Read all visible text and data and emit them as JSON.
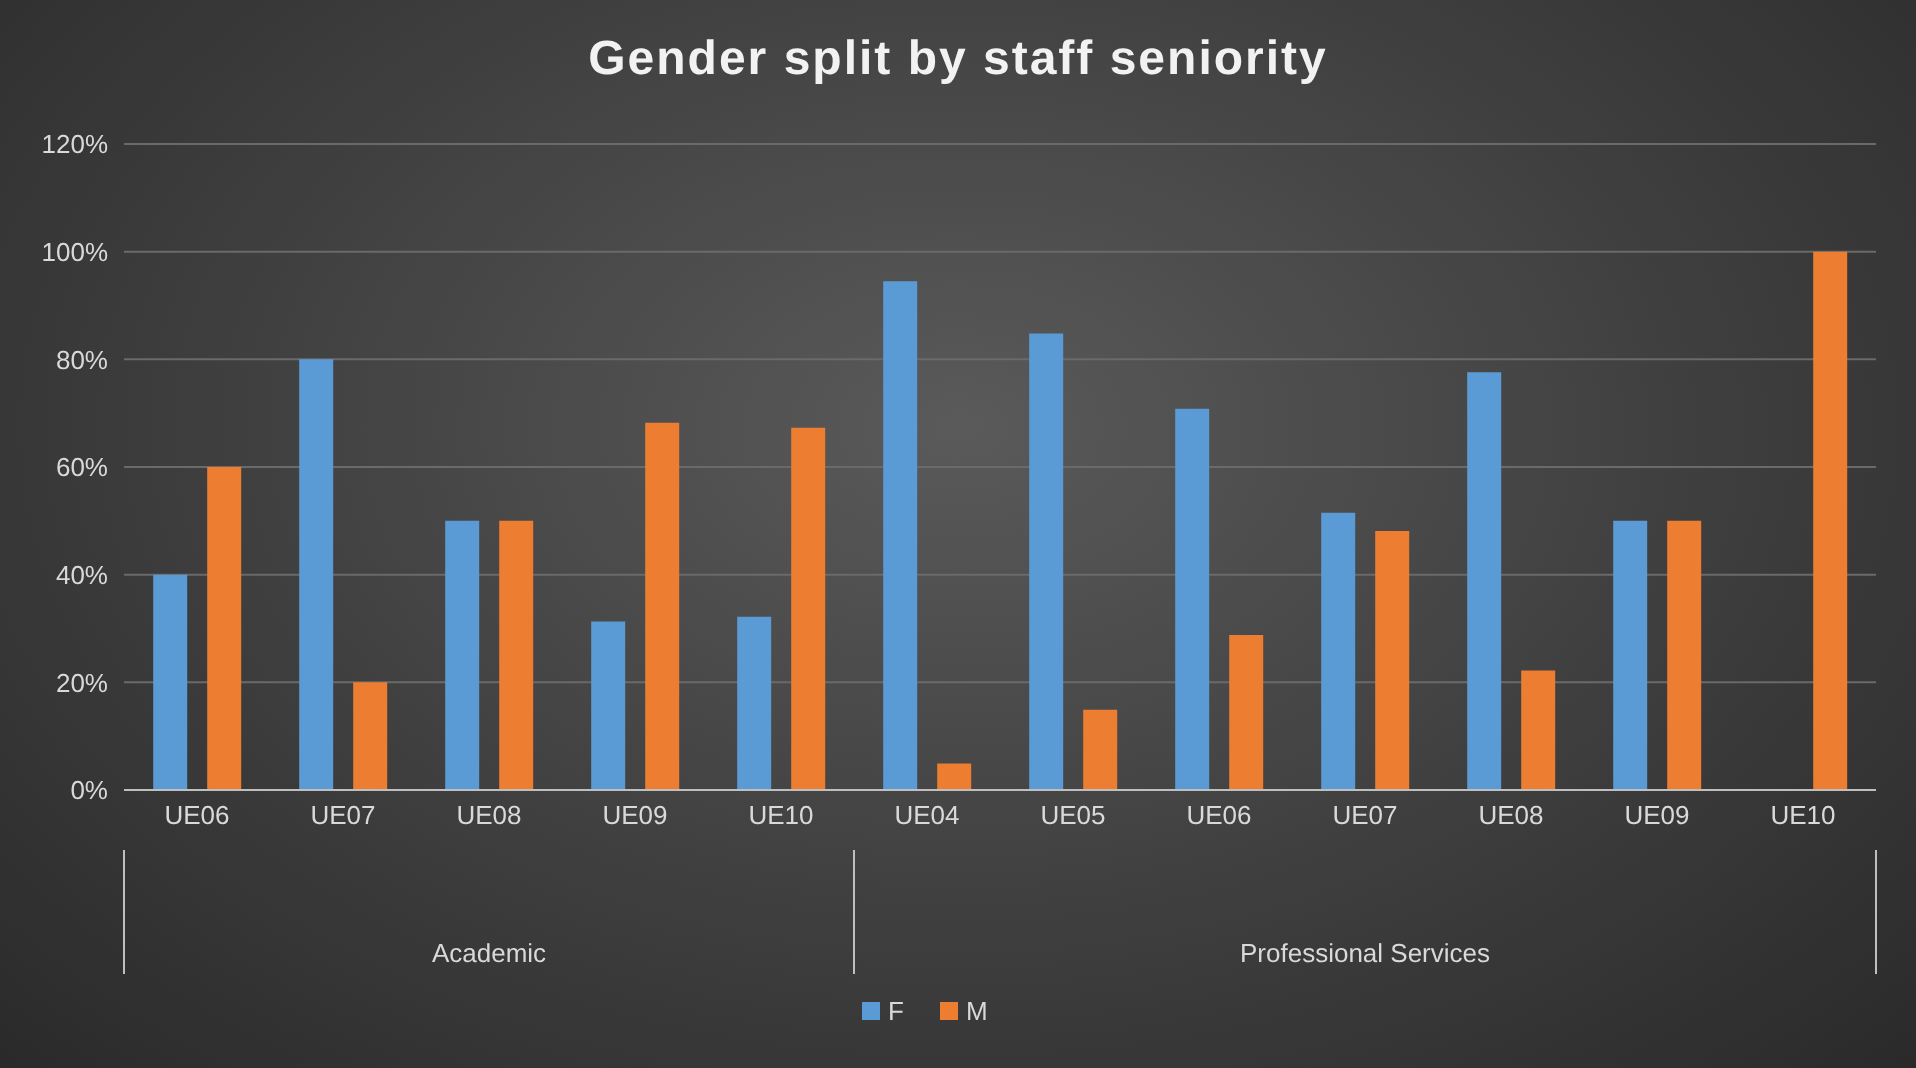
{
  "chart_data": {
    "type": "bar",
    "title": "Gender split by staff seniority",
    "categories": [
      "UE06",
      "UE07",
      "UE08",
      "UE09",
      "UE10",
      "UE04",
      "UE05",
      "UE06",
      "UE07",
      "UE08",
      "UE09",
      "UE10"
    ],
    "series": [
      {
        "name": "F",
        "color": "#5b9bd5",
        "values": [
          40,
          80,
          50,
          31.3,
          32.2,
          94.5,
          84.8,
          70.8,
          51.5,
          77.6,
          50,
          null
        ]
      },
      {
        "name": "M",
        "color": "#ed7d31",
        "values": [
          60,
          20,
          50,
          68.2,
          67.3,
          4.9,
          14.9,
          28.8,
          48.1,
          22.2,
          50,
          100
        ]
      }
    ],
    "ylim": [
      0,
      120
    ],
    "yticks": [
      {
        "value": 0,
        "label": "0%"
      },
      {
        "value": 20,
        "label": "20%"
      },
      {
        "value": 40,
        "label": "40%"
      },
      {
        "value": 60,
        "label": "60%"
      },
      {
        "value": 80,
        "label": "80%"
      },
      {
        "value": 100,
        "label": "100%"
      },
      {
        "value": 120,
        "label": "120%"
      }
    ],
    "grid": "y",
    "legend": "bottom",
    "annotations": [
      "Academic",
      "Professional Services"
    ]
  }
}
